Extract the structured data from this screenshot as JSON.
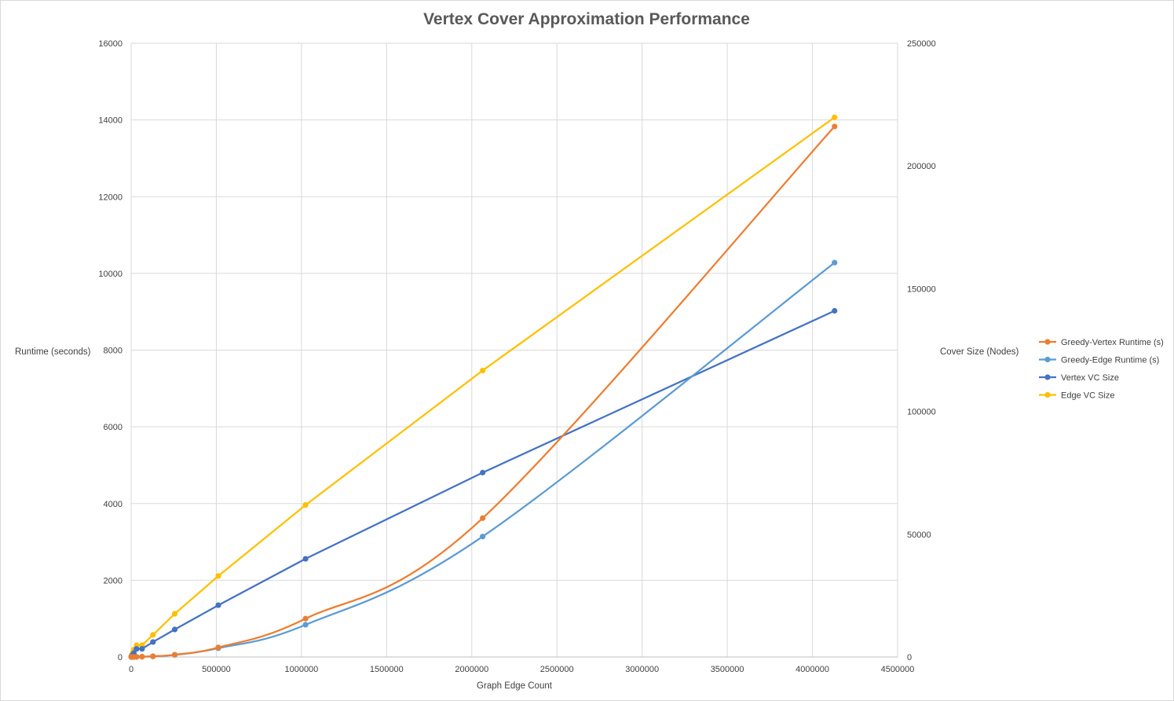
{
  "chart_data": {
    "type": "line",
    "title": "Vertex Cover Approximation Performance",
    "xlabel": "Graph Edge Count",
    "ylabel": "Runtime (seconds)",
    "y2label": "Cover Size (Nodes)",
    "xlim": [
      0,
      4500000
    ],
    "ylim": [
      0,
      16000
    ],
    "y2lim": [
      0,
      250000
    ],
    "xticks": [
      "0",
      "500000",
      "1000000",
      "1500000",
      "2000000",
      "2500000",
      "3000000",
      "3500000",
      "4000000",
      "4500000"
    ],
    "yticks": [
      "0",
      "2000",
      "4000",
      "6000",
      "8000",
      "10000",
      "12000",
      "14000",
      "16000"
    ],
    "y2ticks": [
      "0",
      "50000",
      "100000",
      "150000",
      "200000",
      "250000"
    ],
    "grid": true,
    "legend_position": "right",
    "series": [
      {
        "name": "Greedy-Vertex Runtime (s)",
        "axis": "primary",
        "color": "#ED7D31",
        "smooth": true,
        "x": [
          1000,
          2000,
          4000,
          8000,
          16000,
          32000,
          64000,
          128000,
          256000,
          512000,
          1024000,
          2064000,
          4130000
        ],
        "y": [
          0,
          0,
          0,
          0,
          1,
          3,
          8,
          20,
          60,
          250,
          1000,
          3620,
          13830
        ]
      },
      {
        "name": "Greedy-Edge Runtime (s)",
        "axis": "primary",
        "color": "#5B9BD5",
        "smooth": true,
        "x": [
          1000,
          2000,
          4000,
          8000,
          16000,
          32000,
          64000,
          128000,
          256000,
          512000,
          1024000,
          2064000,
          4130000
        ],
        "y": [
          0,
          0,
          0,
          0,
          1,
          3,
          8,
          15,
          55,
          230,
          840,
          3140,
          10280
        ]
      },
      {
        "name": "Vertex VC Size",
        "axis": "secondary",
        "color": "#4472C4",
        "smooth": false,
        "x": [
          1000,
          2000,
          4000,
          8000,
          16000,
          32000,
          64000,
          128000,
          256000,
          512000,
          1024000,
          2064000,
          4130000
        ],
        "y": [
          100,
          200,
          400,
          800,
          1600,
          3300,
          3300,
          6100,
          11200,
          21100,
          40000,
          75100,
          141000
        ]
      },
      {
        "name": "Edge VC Size",
        "axis": "secondary",
        "color": "#FFC000",
        "smooth": false,
        "x": [
          1000,
          2000,
          4000,
          8000,
          16000,
          32000,
          64000,
          128000,
          256000,
          512000,
          1024000,
          2064000,
          4130000
        ],
        "y": [
          200,
          400,
          800,
          1600,
          3000,
          4800,
          4800,
          9000,
          17600,
          33000,
          61900,
          116700,
          219800
        ]
      }
    ]
  }
}
